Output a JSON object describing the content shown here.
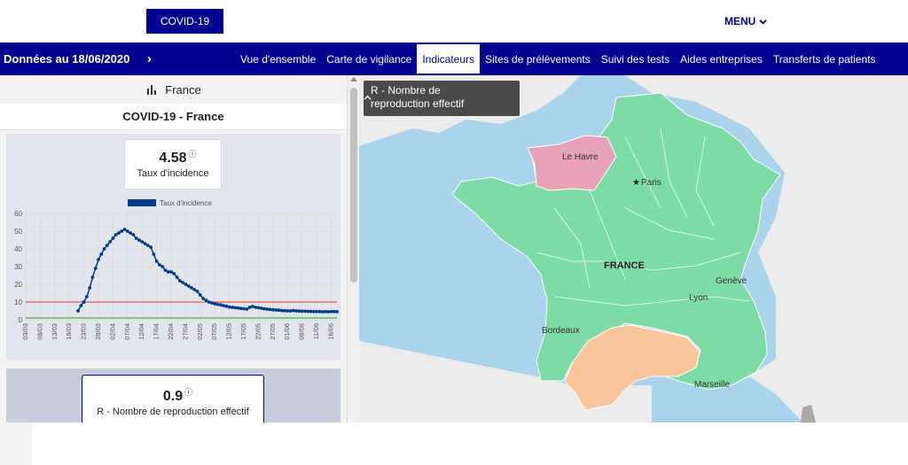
{
  "header": {
    "covid_button": "COVID-19",
    "menu_label": "MENU",
    "date_label": "Données au 18/06/2020",
    "tabs": [
      {
        "label": "Vue d'ensemble",
        "active": false
      },
      {
        "label": "Carte de vigilance",
        "active": false
      },
      {
        "label": "Indicateurs",
        "active": true
      },
      {
        "label": "Sites de prélèvements",
        "active": false
      },
      {
        "label": "Suivi des tests",
        "active": false
      },
      {
        "label": "Aides entreprises",
        "active": false
      },
      {
        "label": "Transferts de patients",
        "active": false
      }
    ]
  },
  "panel": {
    "country": "France",
    "title": "COVID-19 - France",
    "kpi1": {
      "value": "4.58",
      "info": "ⓘ",
      "label": "Taux d'incidence"
    },
    "kpi2": {
      "value": "0.9",
      "info": "ⓘ",
      "label": "R - Nombre de reproduction effectif"
    }
  },
  "map": {
    "selector_label": "R - Nombre de reproduction effectif",
    "country_label": "FRANCE",
    "cities": [
      "Le Havre",
      "Paris",
      "Genève",
      "Lyon",
      "Bordeaux",
      "Marseille"
    ],
    "colors": {
      "green": "#7ddba5",
      "pink": "#e8a2b8",
      "orange": "#fbc59c",
      "sea": "#aad3ec",
      "land": "#ececec"
    }
  },
  "chart_data": {
    "type": "line",
    "legend": "Taux d'incidence",
    "ylim": [
      0,
      60
    ],
    "yticks": [
      0,
      10,
      20,
      30,
      40,
      50,
      60
    ],
    "xticks": [
      "03/03",
      "08/03",
      "13/03",
      "18/03",
      "23/03",
      "28/03",
      "02/04",
      "07/04",
      "12/04",
      "17/04",
      "22/04",
      "27/04",
      "02/05",
      "07/05",
      "12/05",
      "17/05",
      "22/05",
      "27/05",
      "01/06",
      "06/06",
      "11/06",
      "16/06"
    ],
    "threshold_red": 10,
    "threshold_green": 1,
    "series": [
      {
        "name": "Taux d'incidence",
        "color": "#003b8e",
        "x": [
          "21/03",
          "22/03",
          "23/03",
          "24/03",
          "25/03",
          "26/03",
          "27/03",
          "28/03",
          "29/03",
          "30/03",
          "31/03",
          "01/04",
          "02/04",
          "03/04",
          "04/04",
          "05/04",
          "06/04",
          "07/04",
          "08/04",
          "09/04",
          "10/04",
          "11/04",
          "12/04",
          "13/04",
          "14/04",
          "15/04",
          "16/04",
          "17/04",
          "18/04",
          "19/04",
          "20/04",
          "21/04",
          "22/04",
          "23/04",
          "24/04",
          "25/04",
          "26/04",
          "27/04",
          "28/04",
          "29/04",
          "30/04",
          "01/05",
          "02/05",
          "03/05",
          "04/05",
          "05/05",
          "06/05",
          "07/05",
          "08/05",
          "09/05",
          "10/05",
          "11/05",
          "12/05",
          "13/05",
          "14/05",
          "15/05",
          "16/05",
          "17/05",
          "18/05",
          "19/05",
          "20/05",
          "21/05",
          "22/05",
          "23/05",
          "24/05",
          "25/05",
          "26/05",
          "27/05",
          "28/05",
          "29/05",
          "30/05",
          "31/05",
          "01/06",
          "02/06",
          "03/06",
          "04/06",
          "05/06",
          "06/06",
          "07/06",
          "08/06",
          "09/06",
          "10/06",
          "11/06",
          "12/06",
          "13/06",
          "14/06",
          "15/06",
          "16/06",
          "17/06",
          "18/06"
        ],
        "values": [
          5,
          8,
          10,
          13,
          18,
          24,
          29,
          34,
          37,
          40,
          42,
          44,
          46,
          48,
          49,
          50,
          51,
          50,
          49,
          48,
          46,
          45,
          44,
          43,
          42,
          41,
          37,
          33,
          31,
          30,
          28,
          27,
          27,
          26,
          24,
          22,
          21,
          20,
          19,
          18,
          17,
          16,
          14,
          12,
          11,
          10,
          9.5,
          9,
          8.7,
          8.4,
          8,
          7.6,
          7.2,
          7,
          6.8,
          6.6,
          6.4,
          6.2,
          6,
          7,
          7.5,
          7,
          6.8,
          6.5,
          6.2,
          6,
          5.8,
          5.6,
          5.5,
          5.4,
          5.2,
          5.1,
          5,
          5,
          5.2,
          5,
          4.9,
          4.8,
          4.8,
          4.7,
          4.7,
          4.6,
          4.6,
          4.6,
          4.5,
          4.6,
          4.5,
          4.6,
          4.6,
          4.58
        ]
      }
    ]
  }
}
